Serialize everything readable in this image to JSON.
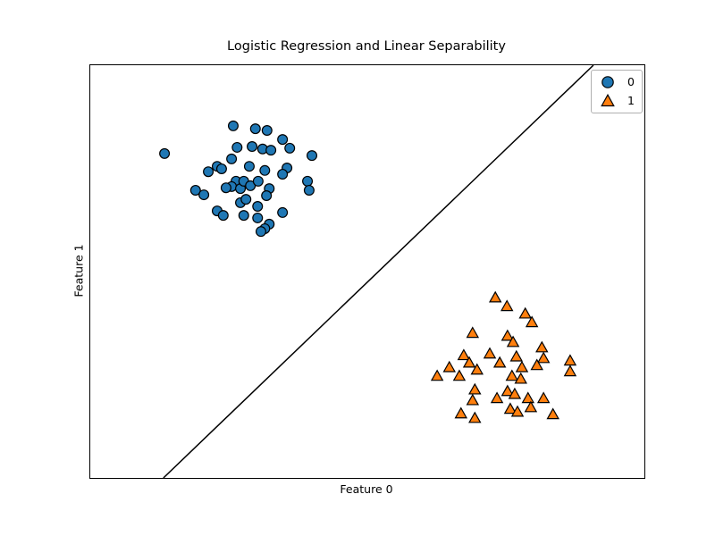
{
  "figure": {
    "title": "Logistic Regression and Linear Separability",
    "xlabel": "Feature 0",
    "ylabel": "Feature 1",
    "background_color": "#ffffff",
    "spine_color": "#000000"
  },
  "legend": {
    "position": "upper-right",
    "border_color": "#b0b0b0",
    "items": [
      {
        "label": "0",
        "marker": "circle",
        "color": "#1f77b4"
      },
      {
        "label": "1",
        "marker": "triangle",
        "color": "#ff7f0e"
      }
    ]
  },
  "chart_data": {
    "type": "scatter",
    "title": "Logistic Regression and Linear Separability",
    "xlabel": "Feature 0",
    "ylabel": "Feature 1",
    "grid": false,
    "ticks_visible": false,
    "legend_position": "upper-right",
    "axes_note": "no tick labels shown; point coordinates given as fractions of the axes box, origin bottom-left",
    "series": [
      {
        "name": "0",
        "marker": "circle",
        "fill_color": "#1f77b4",
        "edge_color": "#000000",
        "points_frac": [
          [
            0.258,
            0.853
          ],
          [
            0.298,
            0.846
          ],
          [
            0.319,
            0.842
          ],
          [
            0.347,
            0.82
          ],
          [
            0.134,
            0.786
          ],
          [
            0.265,
            0.801
          ],
          [
            0.292,
            0.803
          ],
          [
            0.311,
            0.797
          ],
          [
            0.326,
            0.794
          ],
          [
            0.36,
            0.799
          ],
          [
            0.4,
            0.781
          ],
          [
            0.255,
            0.773
          ],
          [
            0.229,
            0.755
          ],
          [
            0.213,
            0.742
          ],
          [
            0.237,
            0.749
          ],
          [
            0.287,
            0.755
          ],
          [
            0.315,
            0.745
          ],
          [
            0.355,
            0.751
          ],
          [
            0.347,
            0.736
          ],
          [
            0.263,
            0.719
          ],
          [
            0.255,
            0.706
          ],
          [
            0.245,
            0.703
          ],
          [
            0.19,
            0.697
          ],
          [
            0.205,
            0.686
          ],
          [
            0.271,
            0.701
          ],
          [
            0.277,
            0.719
          ],
          [
            0.289,
            0.708
          ],
          [
            0.303,
            0.719
          ],
          [
            0.323,
            0.701
          ],
          [
            0.392,
            0.719
          ],
          [
            0.395,
            0.697
          ],
          [
            0.271,
            0.667
          ],
          [
            0.281,
            0.675
          ],
          [
            0.318,
            0.684
          ],
          [
            0.302,
            0.658
          ],
          [
            0.229,
            0.647
          ],
          [
            0.24,
            0.636
          ],
          [
            0.277,
            0.636
          ],
          [
            0.302,
            0.63
          ],
          [
            0.347,
            0.643
          ],
          [
            0.323,
            0.615
          ],
          [
            0.315,
            0.604
          ],
          [
            0.308,
            0.597
          ]
        ]
      },
      {
        "name": "1",
        "marker": "triangle",
        "fill_color": "#ff7f0e",
        "edge_color": "#000000",
        "points_frac": [
          [
            0.731,
            0.437
          ],
          [
            0.752,
            0.416
          ],
          [
            0.785,
            0.398
          ],
          [
            0.797,
            0.377
          ],
          [
            0.69,
            0.351
          ],
          [
            0.753,
            0.344
          ],
          [
            0.763,
            0.329
          ],
          [
            0.815,
            0.316
          ],
          [
            0.818,
            0.29
          ],
          [
            0.721,
            0.301
          ],
          [
            0.674,
            0.297
          ],
          [
            0.684,
            0.279
          ],
          [
            0.648,
            0.268
          ],
          [
            0.666,
            0.247
          ],
          [
            0.626,
            0.247
          ],
          [
            0.769,
            0.294
          ],
          [
            0.779,
            0.268
          ],
          [
            0.739,
            0.279
          ],
          [
            0.761,
            0.247
          ],
          [
            0.777,
            0.24
          ],
          [
            0.866,
            0.284
          ],
          [
            0.866,
            0.258
          ],
          [
            0.806,
            0.273
          ],
          [
            0.698,
            0.262
          ],
          [
            0.694,
            0.214
          ],
          [
            0.69,
            0.188
          ],
          [
            0.734,
            0.193
          ],
          [
            0.753,
            0.21
          ],
          [
            0.766,
            0.203
          ],
          [
            0.758,
            0.167
          ],
          [
            0.79,
            0.193
          ],
          [
            0.795,
            0.171
          ],
          [
            0.818,
            0.193
          ],
          [
            0.669,
            0.156
          ],
          [
            0.694,
            0.145
          ],
          [
            0.835,
            0.154
          ],
          [
            0.771,
            0.16
          ]
        ]
      }
    ],
    "decision_boundary": {
      "type": "line",
      "color": "#000000",
      "width": 1.5,
      "from_frac": [
        0.132,
        0.0
      ],
      "to_frac": [
        0.908,
        1.0
      ]
    }
  }
}
